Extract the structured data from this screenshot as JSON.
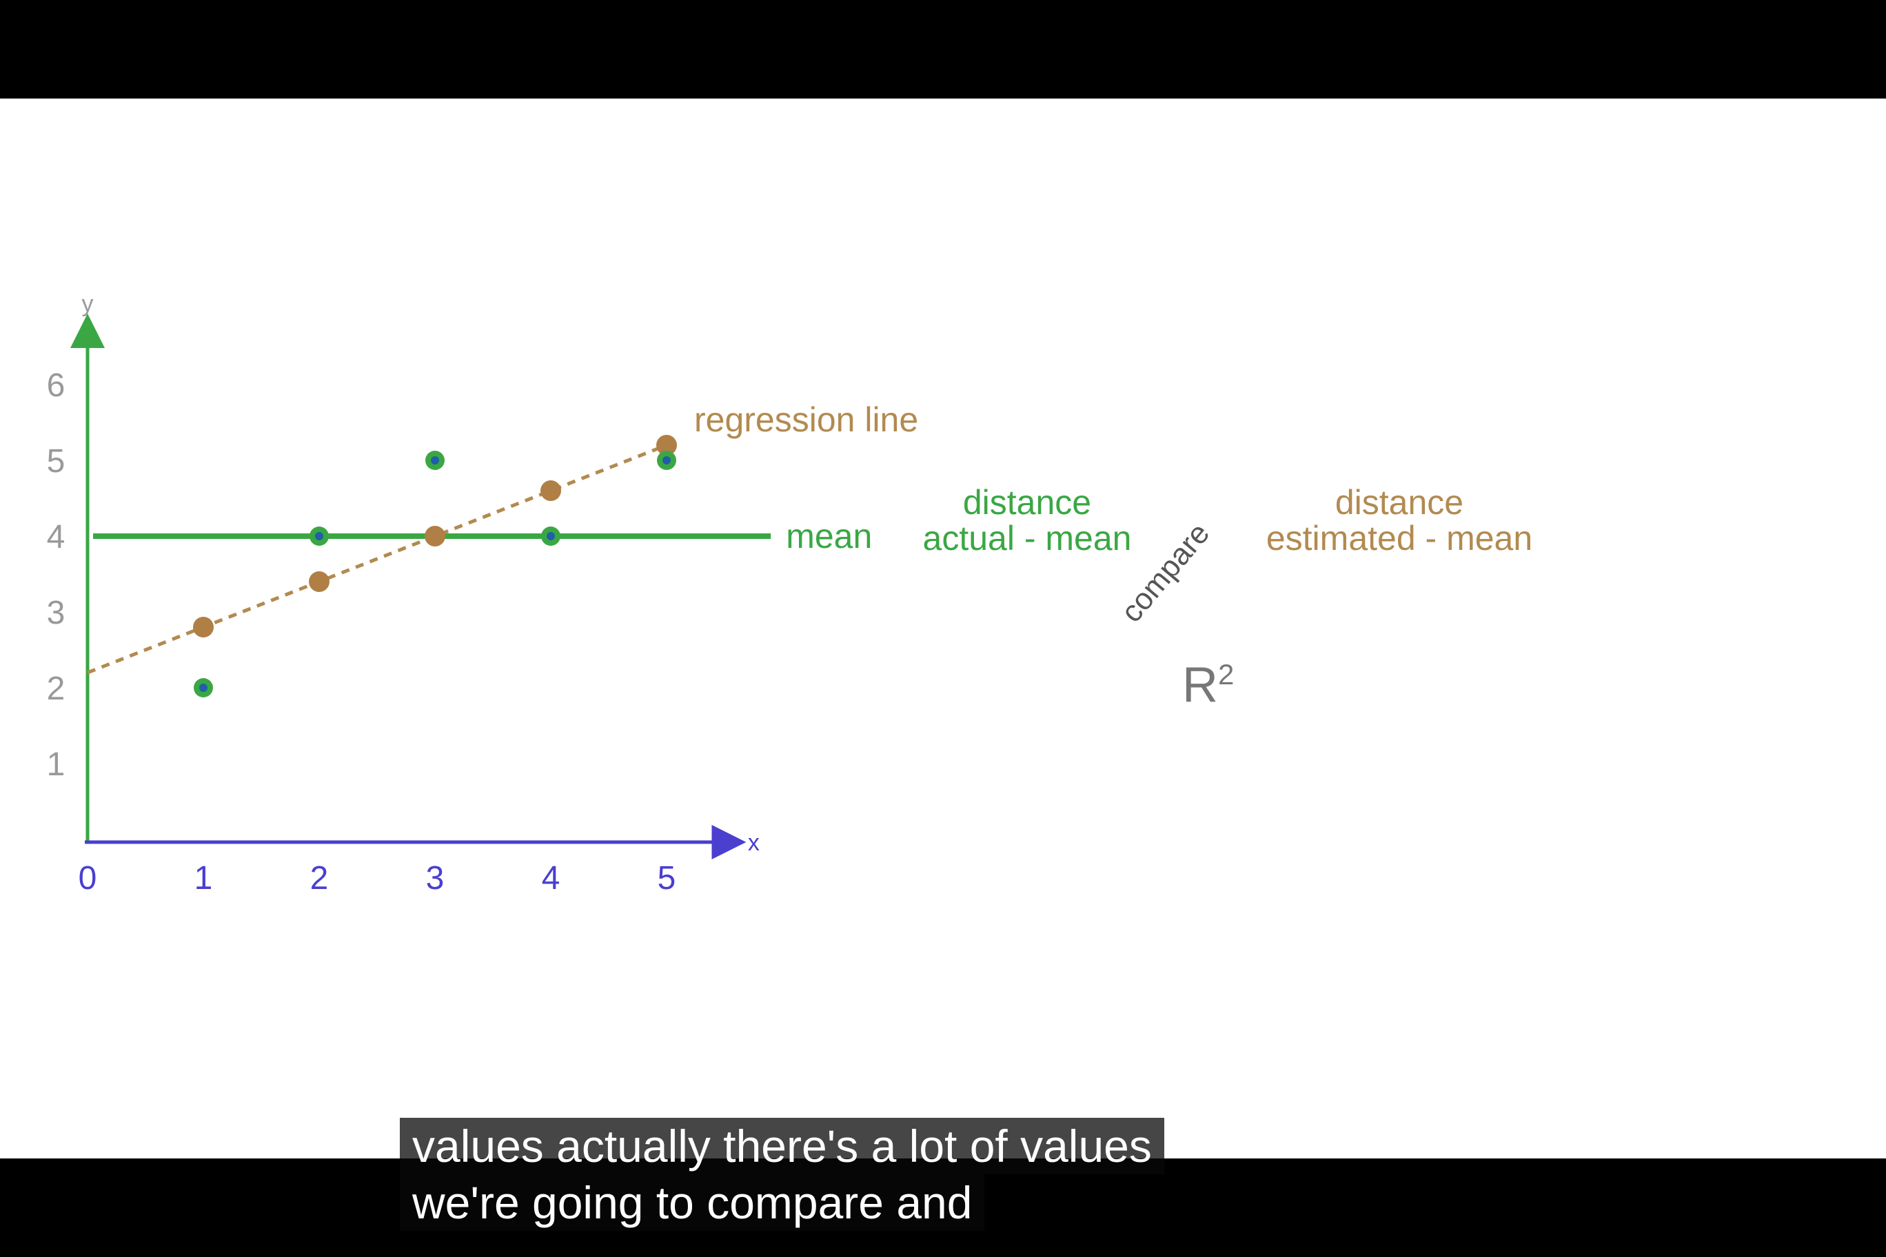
{
  "chart_data": {
    "type": "scatter",
    "x_axis_label": "x",
    "y_axis_label": "y",
    "xticks": [
      "0",
      "1",
      "2",
      "3",
      "4",
      "5"
    ],
    "yticks": [
      "1",
      "2",
      "3",
      "4",
      "5",
      "6"
    ],
    "xlim": [
      0,
      5.3
    ],
    "ylim": [
      0,
      6.8
    ],
    "actual_points": [
      {
        "x": 1,
        "y": 2
      },
      {
        "x": 2,
        "y": 4
      },
      {
        "x": 3,
        "y": 5
      },
      {
        "x": 4,
        "y": 4
      },
      {
        "x": 5,
        "y": 5
      }
    ],
    "estimated_points": [
      {
        "x": 1,
        "y": 2.8
      },
      {
        "x": 2,
        "y": 3.4
      },
      {
        "x": 3,
        "y": 4.0
      },
      {
        "x": 4,
        "y": 4.6
      },
      {
        "x": 5,
        "y": 5.2
      }
    ],
    "regression_line": {
      "label": "regression line",
      "intercept": 2.2,
      "slope": 0.6,
      "x_range": [
        0,
        5
      ],
      "color": "#b28a50"
    },
    "mean_line": {
      "label": "mean",
      "y": 4,
      "x_range": [
        0,
        5.9
      ],
      "color": "#3aa744"
    },
    "colors": {
      "x_axis": "#4a3fcf",
      "y_axis": "#3aa744",
      "actual_point_fill": "#1f5fa8",
      "actual_point_ring": "#3aa744",
      "estimated_point": "#b07f45",
      "y_tick_label": "#999999"
    }
  },
  "annotations": {
    "actual": {
      "line1": "distance",
      "line2": "actual - mean"
    },
    "compare": "compare",
    "estimated": {
      "line1": "distance",
      "line2": "estimated - mean"
    },
    "r_squared": {
      "base": "R",
      "exponent": "2"
    }
  },
  "captions": {
    "line1": "values actually there's a lot of values",
    "line2": "we're going to compare and"
  }
}
